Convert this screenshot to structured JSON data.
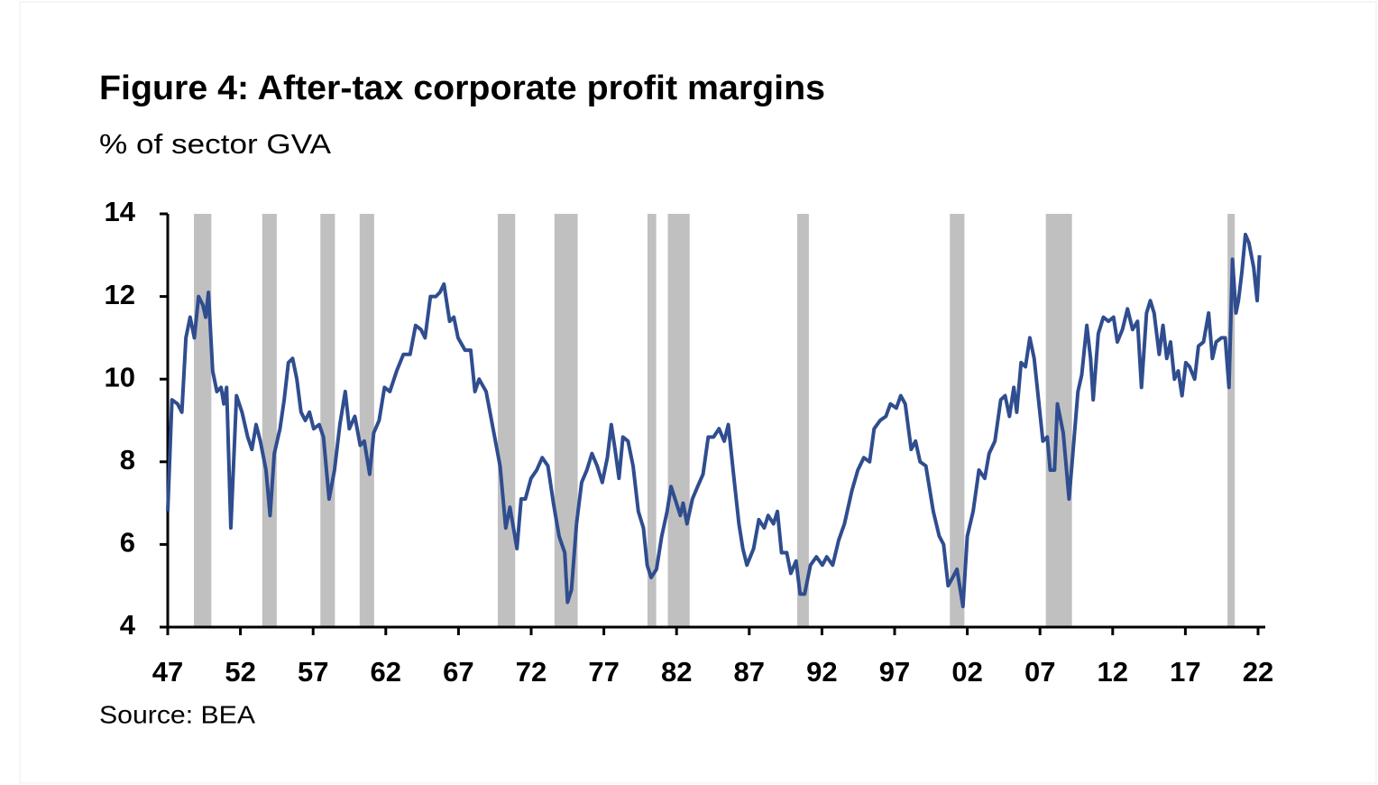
{
  "chart_data": {
    "type": "line",
    "title": "Figure 4: After-tax corporate profit margins",
    "subtitle": "% of sector GVA",
    "source": "Source: BEA",
    "color": "#2f4d8f",
    "recession_color": "#c0c0c0",
    "recessions": [
      [
        1948.8,
        1950.0
      ],
      [
        1953.5,
        1954.5
      ],
      [
        1957.5,
        1958.5
      ],
      [
        1960.2,
        1961.2
      ],
      [
        1969.7,
        1970.9
      ],
      [
        1973.6,
        1975.2
      ],
      [
        1980.0,
        1980.6
      ],
      [
        1981.4,
        1982.9
      ],
      [
        1990.3,
        1991.1
      ],
      [
        2000.8,
        2001.8
      ],
      [
        2007.4,
        2009.2
      ],
      [
        2019.9,
        2020.4
      ]
    ],
    "x": [
      1947.0,
      1947.29,
      1947.68,
      1947.97,
      1948.25,
      1948.54,
      1948.83,
      1949.12,
      1949.41,
      1949.61,
      1949.8,
      1950.09,
      1950.38,
      1950.67,
      1950.86,
      1951.05,
      1951.34,
      1951.73,
      1952.11,
      1952.5,
      1952.79,
      1953.08,
      1953.37,
      1953.76,
      1954.04,
      1954.33,
      1954.72,
      1955.01,
      1955.3,
      1955.59,
      1955.88,
      1956.17,
      1956.46,
      1956.75,
      1957.04,
      1957.42,
      1957.71,
      1958.1,
      1958.47,
      1958.84,
      1959.21,
      1959.49,
      1959.87,
      1960.24,
      1960.52,
      1960.89,
      1961.17,
      1961.54,
      1961.91,
      1962.28,
      1962.75,
      1963.21,
      1963.67,
      1964.05,
      1964.42,
      1964.7,
      1965.07,
      1965.44,
      1965.72,
      1966.0,
      1966.39,
      1966.68,
      1966.97,
      1967.45,
      1967.84,
      1968.13,
      1968.42,
      1968.9,
      1969.38,
      1969.86,
      1970.25,
      1970.54,
      1970.83,
      1971.02,
      1971.31,
      1971.6,
      1971.99,
      1972.38,
      1972.76,
      1973.15,
      1973.53,
      1973.92,
      1974.31,
      1974.5,
      1974.77,
      1975.12,
      1975.47,
      1975.83,
      1976.18,
      1976.54,
      1976.89,
      1977.24,
      1977.51,
      1977.77,
      1978.04,
      1978.31,
      1978.66,
      1979.01,
      1979.37,
      1979.72,
      1979.98,
      1980.25,
      1980.62,
      1980.98,
      1981.35,
      1981.62,
      1981.99,
      1982.26,
      1982.45,
      1982.72,
      1983.09,
      1983.45,
      1983.82,
      1984.18,
      1984.55,
      1984.92,
      1985.28,
      1985.56,
      1985.92,
      1986.29,
      1986.56,
      1986.84,
      1987.3,
      1987.66,
      1988.03,
      1988.3,
      1988.67,
      1988.94,
      1989.22,
      1989.58,
      1989.86,
      1990.22,
      1990.5,
      1990.81,
      1991.21,
      1991.62,
      1992.03,
      1992.33,
      1992.74,
      1993.15,
      1993.55,
      1994.06,
      1994.47,
      1994.88,
      1995.28,
      1995.59,
      1996.0,
      1996.4,
      1996.71,
      1997.12,
      1997.42,
      1997.73,
      1998.14,
      1998.44,
      1998.75,
      1999.15,
      1999.66,
      2000.07,
      2000.37,
      2000.68,
      2000.99,
      2001.29,
      2001.7,
      2002.0,
      2002.4,
      2002.8,
      2003.2,
      2003.5,
      2003.9,
      2004.3,
      2004.6,
      2004.9,
      2005.2,
      2005.4,
      2005.7,
      2006.0,
      2006.3,
      2006.6,
      2006.9,
      2007.2,
      2007.5,
      2007.7,
      2008.0,
      2008.2,
      2008.6,
      2009.0,
      2009.26,
      2009.61,
      2009.87,
      2010.22,
      2010.48,
      2010.66,
      2011.01,
      2011.36,
      2011.71,
      2012.06,
      2012.32,
      2012.67,
      2013.02,
      2013.37,
      2013.71,
      2013.98,
      2014.33,
      2014.59,
      2014.85,
      2015.2,
      2015.46,
      2015.72,
      2015.98,
      2016.25,
      2016.51,
      2016.77,
      2017.03,
      2017.29,
      2017.64,
      2017.9,
      2018.25,
      2018.6,
      2018.86,
      2019.12,
      2019.48,
      2019.74,
      2020.0,
      2020.24,
      2020.48,
      2020.65,
      2020.89,
      2021.13,
      2021.37,
      2021.7,
      2021.94,
      2022.1
    ],
    "values": [
      6.8,
      9.5,
      9.4,
      9.2,
      11.0,
      11.5,
      11.0,
      12.0,
      11.8,
      11.5,
      12.1,
      10.2,
      9.7,
      9.8,
      9.4,
      9.8,
      6.4,
      9.6,
      9.2,
      8.6,
      8.3,
      8.9,
      8.5,
      7.8,
      6.7,
      8.2,
      8.8,
      9.5,
      10.4,
      10.5,
      10.0,
      9.2,
      9.0,
      9.2,
      8.8,
      8.9,
      8.6,
      7.1,
      7.8,
      8.9,
      9.7,
      8.8,
      9.1,
      8.4,
      8.5,
      7.7,
      8.7,
      9.0,
      9.8,
      9.7,
      10.2,
      10.6,
      10.6,
      11.3,
      11.2,
      11.0,
      12.0,
      12.0,
      12.1,
      12.3,
      11.4,
      11.5,
      11.0,
      10.7,
      10.7,
      9.7,
      10.0,
      9.7,
      8.8,
      7.9,
      6.4,
      6.9,
      6.3,
      5.9,
      7.1,
      7.1,
      7.6,
      7.8,
      8.1,
      7.9,
      7.0,
      6.2,
      5.8,
      4.6,
      4.9,
      6.5,
      7.5,
      7.8,
      8.2,
      7.9,
      7.5,
      8.1,
      8.9,
      8.3,
      7.6,
      8.6,
      8.5,
      7.9,
      6.8,
      6.4,
      5.5,
      5.2,
      5.4,
      6.2,
      6.8,
      7.4,
      7.0,
      6.7,
      7.0,
      6.5,
      7.1,
      7.4,
      7.7,
      8.6,
      8.6,
      8.8,
      8.5,
      8.9,
      7.7,
      6.5,
      5.9,
      5.5,
      5.9,
      6.6,
      6.4,
      6.7,
      6.5,
      6.8,
      5.8,
      5.8,
      5.3,
      5.6,
      4.8,
      4.8,
      5.5,
      5.7,
      5.5,
      5.7,
      5.5,
      6.1,
      6.5,
      7.3,
      7.8,
      8.1,
      8.0,
      8.8,
      9.0,
      9.1,
      9.4,
      9.3,
      9.6,
      9.4,
      8.3,
      8.5,
      8.0,
      7.9,
      6.8,
      6.2,
      6.0,
      5.0,
      5.2,
      5.4,
      4.5,
      6.2,
      6.8,
      7.8,
      7.6,
      8.2,
      8.5,
      9.5,
      9.6,
      9.1,
      9.8,
      9.2,
      10.4,
      10.3,
      11.0,
      10.5,
      9.5,
      8.5,
      8.6,
      7.8,
      7.8,
      9.4,
      8.7,
      7.1,
      8.2,
      9.7,
      10.1,
      11.3,
      10.5,
      9.5,
      11.1,
      11.5,
      11.4,
      11.5,
      10.9,
      11.2,
      11.7,
      11.2,
      11.4,
      9.8,
      11.6,
      11.9,
      11.6,
      10.6,
      11.3,
      10.5,
      10.9,
      10.0,
      10.2,
      9.6,
      10.4,
      10.3,
      10.0,
      10.8,
      10.9,
      11.6,
      10.5,
      10.9,
      11.0,
      11.0,
      9.8,
      12.9,
      11.6,
      11.9,
      12.6,
      13.5,
      13.3,
      12.7,
      11.9,
      13.0
    ],
    "xlim": [
      1947,
      2022
    ],
    "xticks": [
      {
        "value": 1947,
        "label": "47"
      },
      {
        "value": 1952,
        "label": "52"
      },
      {
        "value": 1957,
        "label": "57"
      },
      {
        "value": 1962,
        "label": "62"
      },
      {
        "value": 1967,
        "label": "67"
      },
      {
        "value": 1972,
        "label": "72"
      },
      {
        "value": 1977,
        "label": "77"
      },
      {
        "value": 1982,
        "label": "82"
      },
      {
        "value": 1987,
        "label": "87"
      },
      {
        "value": 1992,
        "label": "92"
      },
      {
        "value": 1997,
        "label": "97"
      },
      {
        "value": 2002,
        "label": "02"
      },
      {
        "value": 2007,
        "label": "07"
      },
      {
        "value": 2012,
        "label": "12"
      },
      {
        "value": 2017,
        "label": "17"
      },
      {
        "value": 2022,
        "label": "22"
      }
    ],
    "ylim": [
      4,
      14
    ],
    "yticks": [
      4,
      6,
      8,
      10,
      12,
      14
    ],
    "grid": false
  }
}
